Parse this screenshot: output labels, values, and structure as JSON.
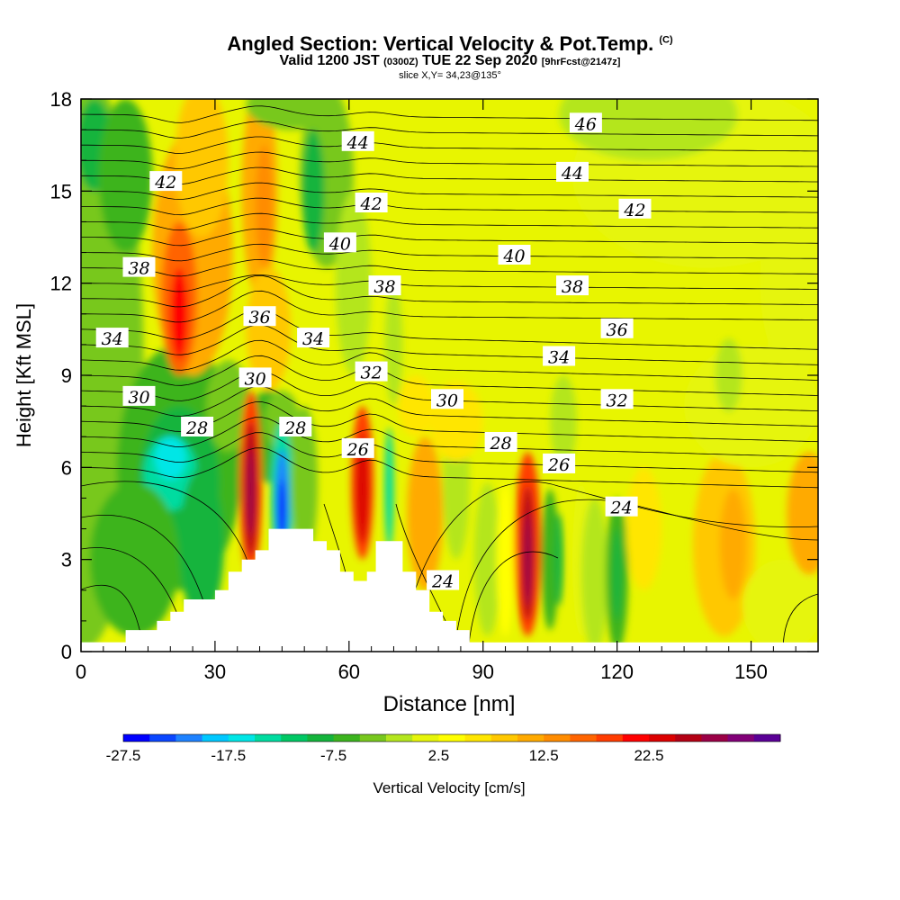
{
  "chart_data": {
    "type": "heatmap",
    "title": "Angled Section: Vertical Velocity & Pot.Temp.",
    "title_tag": "(C)",
    "subtitle_main": "Valid 1200 JST",
    "subtitle_zulu": "(0300Z)",
    "subtitle_date": "TUE 22 Sep 2020",
    "subtitle_fcst": "[9hrFcst@2147z]",
    "subtitle2": "slice X,Y= 34,23@135°",
    "xlabel": "Distance [nm]",
    "ylabel": "Height [Kft MSL]",
    "xlim": [
      0,
      165
    ],
    "ylim": [
      0,
      18
    ],
    "x_ticks": [
      0,
      30,
      60,
      90,
      120,
      150
    ],
    "y_ticks": [
      0,
      3,
      6,
      9,
      12,
      15,
      18
    ],
    "colorbar": {
      "label": "Vertical Velocity [cm/s]",
      "tick_labels": [
        "-27.5",
        "-17.5",
        "-7.5",
        "2.5",
        "12.5",
        "22.5"
      ],
      "colors": [
        "#0000ff",
        "#0a46ff",
        "#1e82ff",
        "#00c8ff",
        "#00e6e6",
        "#00dca0",
        "#00c864",
        "#14b43c",
        "#3cb41e",
        "#78c81e",
        "#b4e61e",
        "#e6f50a",
        "#ffff00",
        "#ffe600",
        "#ffc800",
        "#ffaa00",
        "#ff8c00",
        "#ff6400",
        "#ff3c00",
        "#ff0000",
        "#dc0000",
        "#b40014",
        "#9b0046",
        "#820078",
        "#5a0096"
      ]
    },
    "terrain_profile": [
      [
        0,
        0.3
      ],
      [
        10,
        0.3
      ],
      [
        10,
        0.7
      ],
      [
        17,
        0.7
      ],
      [
        17,
        1.0
      ],
      [
        20,
        1.0
      ],
      [
        20,
        1.3
      ],
      [
        23,
        1.3
      ],
      [
        23,
        1.7
      ],
      [
        30,
        1.7
      ],
      [
        30,
        2.0
      ],
      [
        33,
        2.0
      ],
      [
        33,
        2.6
      ],
      [
        36,
        2.6
      ],
      [
        36,
        3.0
      ],
      [
        39,
        3.0
      ],
      [
        39,
        3.3
      ],
      [
        42,
        3.3
      ],
      [
        42,
        4.0
      ],
      [
        52,
        4.0
      ],
      [
        52,
        3.6
      ],
      [
        55,
        3.6
      ],
      [
        55,
        3.3
      ],
      [
        58,
        3.3
      ],
      [
        58,
        2.6
      ],
      [
        61,
        2.6
      ],
      [
        61,
        2.3
      ],
      [
        64,
        2.3
      ],
      [
        64,
        2.6
      ],
      [
        66,
        2.6
      ],
      [
        66,
        3.6
      ],
      [
        72,
        3.6
      ],
      [
        72,
        2.6
      ],
      [
        75,
        2.6
      ],
      [
        75,
        2.0
      ],
      [
        78,
        2.0
      ],
      [
        78,
        1.3
      ],
      [
        81,
        1.3
      ],
      [
        81,
        1.0
      ],
      [
        84,
        1.0
      ],
      [
        84,
        0.7
      ],
      [
        87,
        0.7
      ],
      [
        87,
        0.3
      ],
      [
        90,
        0.3
      ]
    ],
    "theta_contour_labels": [
      {
        "text": "46",
        "x": 113,
        "y": 17.2
      },
      {
        "text": "44",
        "x": 62,
        "y": 16.6
      },
      {
        "text": "44",
        "x": 110,
        "y": 15.6
      },
      {
        "text": "42",
        "x": 19,
        "y": 15.3
      },
      {
        "text": "42",
        "x": 65,
        "y": 14.6
      },
      {
        "text": "42",
        "x": 124,
        "y": 14.4
      },
      {
        "text": "40",
        "x": 58,
        "y": 13.3
      },
      {
        "text": "40",
        "x": 97,
        "y": 12.9
      },
      {
        "text": "38",
        "x": 13,
        "y": 12.5
      },
      {
        "text": "38",
        "x": 68,
        "y": 11.9
      },
      {
        "text": "38",
        "x": 110,
        "y": 11.9
      },
      {
        "text": "36",
        "x": 40,
        "y": 10.9
      },
      {
        "text": "36",
        "x": 120,
        "y": 10.5
      },
      {
        "text": "34",
        "x": 7,
        "y": 10.2
      },
      {
        "text": "34",
        "x": 52,
        "y": 10.2
      },
      {
        "text": "34",
        "x": 107,
        "y": 9.6
      },
      {
        "text": "32",
        "x": 65,
        "y": 9.1
      },
      {
        "text": "32",
        "x": 120,
        "y": 8.2
      },
      {
        "text": "30",
        "x": 13,
        "y": 8.3
      },
      {
        "text": "30",
        "x": 39,
        "y": 8.9
      },
      {
        "text": "30",
        "x": 82,
        "y": 8.2
      },
      {
        "text": "28",
        "x": 26,
        "y": 7.3
      },
      {
        "text": "28",
        "x": 48,
        "y": 7.3
      },
      {
        "text": "28",
        "x": 94,
        "y": 6.8
      },
      {
        "text": "26",
        "x": 62,
        "y": 6.6
      },
      {
        "text": "26",
        "x": 107,
        "y": 6.1
      },
      {
        "text": "24",
        "x": 121,
        "y": 4.7
      },
      {
        "text": "24",
        "x": 81,
        "y": 2.3
      }
    ]
  }
}
